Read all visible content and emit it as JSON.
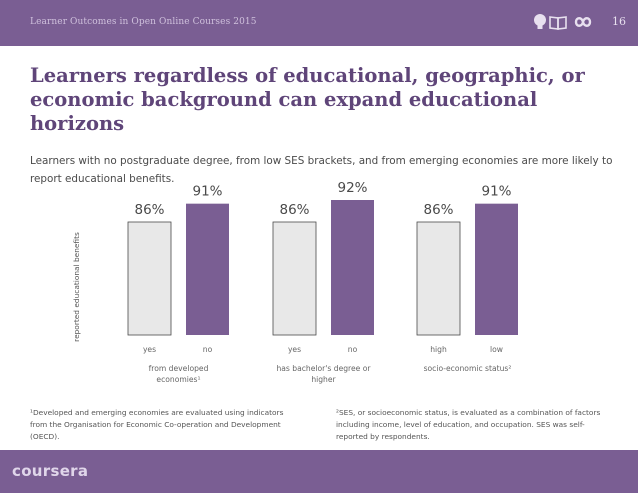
{
  "header": {
    "deck_title": "Learner Outcomes in Open Online Courses 2015",
    "page_number": "16",
    "icons": [
      "lightbulb-icon",
      "open-book-icon",
      "infinity-icon"
    ]
  },
  "slide": {
    "title": "Learners regardless of educational, geographic, or economic background can expand educational horizons",
    "subtitle": "Learners with no postgraduate degree, from low SES brackets, and from emerging economies are more likely to report educational benefits."
  },
  "chart_data": {
    "type": "bar",
    "ylabel": "reported educational benefits",
    "ylim": [
      0,
      100
    ],
    "grid": false,
    "legend": "none",
    "colors": {
      "first": "#e8e8e8",
      "second": "#7a5e93"
    },
    "groups": [
      {
        "label": "from developed economies¹",
        "categories": [
          "yes",
          "no"
        ],
        "values": [
          86,
          91
        ]
      },
      {
        "label": "has bachelor's degree or higher",
        "categories": [
          "yes",
          "no"
        ],
        "values": [
          86,
          92
        ]
      },
      {
        "label": "socio-economic status²",
        "categories": [
          "high",
          "low"
        ],
        "values": [
          86,
          91
        ]
      }
    ]
  },
  "footnotes": {
    "left": "¹Developed and emerging economies are evaluated using indicators from the Organisation for Economic Co-operation and Development (OECD).",
    "right": "²SES, or socioeconomic status, is evaluated as a combination of factors including income, level of education, and occupation. SES was self-reported by respondents."
  },
  "footer": {
    "logo_text": "coursera"
  },
  "theme": {
    "brand_purple": "#7a5e93",
    "title_purple": "#5f4579"
  }
}
